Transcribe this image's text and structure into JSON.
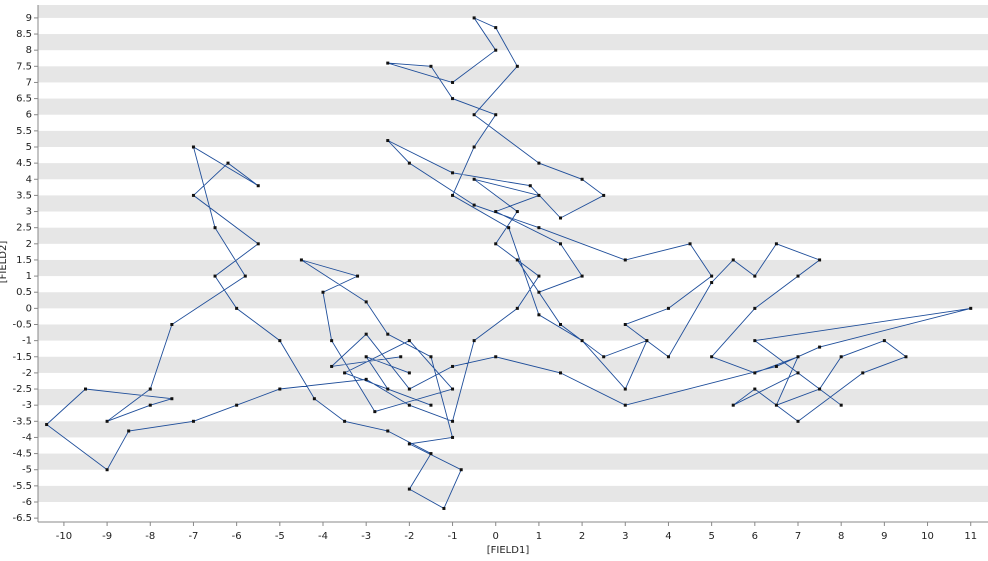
{
  "chart_data": {
    "type": "line",
    "x_label": "[FIELD1]",
    "y_label": "[FIELD2]",
    "line_color": "#1f4e9a",
    "marker_color": "#111111",
    "band_color": "#e6e6e6",
    "grid": "bands",
    "xlim": [
      -10.6,
      11.4
    ],
    "ylim": [
      -6.62,
      9.4
    ],
    "xticks": [
      -10,
      -9,
      -8,
      -7,
      -6,
      -5,
      -4,
      -3,
      -2,
      -1,
      0,
      1,
      2,
      3,
      4,
      5,
      6,
      7,
      8,
      9,
      10,
      11
    ],
    "yticks": [
      -6.5,
      -6,
      -5.5,
      -5,
      -4.5,
      -4,
      -3.5,
      -3,
      -2.5,
      -2,
      -1.5,
      -1,
      -0.5,
      0,
      0.5,
      1,
      1.5,
      2,
      2.5,
      3,
      3.5,
      4,
      4.5,
      5,
      5.5,
      6,
      6.5,
      7,
      7.5,
      8,
      8.5,
      9
    ],
    "x": [
      -2,
      -3,
      -2.5,
      -1.5,
      -3.5,
      -2,
      -1,
      -2.8,
      -3.8,
      -4,
      -3.2,
      -4.5,
      -3,
      -2.5,
      -1.5,
      -1,
      -2,
      -0.8,
      -1.2,
      -2,
      -1.5,
      -2.5,
      -3.5,
      -4.2,
      -5,
      -6,
      -6.5,
      -5.5,
      -7,
      -6.2,
      -5.5,
      -7,
      -6.5,
      -5.8,
      -7.5,
      -8,
      -9,
      -8,
      -7.5,
      -9.5,
      -10.4,
      -9,
      -8.5,
      -7,
      -6,
      -5,
      -3,
      -2,
      -1,
      -0.5,
      0.5,
      1,
      0,
      0.5,
      -0.5,
      1,
      0,
      1.5,
      2,
      1,
      0.5,
      1.5,
      2.5,
      3.5,
      3,
      2,
      1,
      0.3,
      -1,
      -0.5,
      0,
      -1,
      -1.5,
      -2.5,
      -1,
      0,
      -0.5,
      0,
      0.5,
      -0.5,
      1,
      2,
      2.5,
      1.5,
      0.8,
      -1,
      -2.5,
      -2,
      -0.5,
      1,
      3,
      4.5,
      5,
      4,
      3,
      4,
      5,
      5.5,
      6,
      6.5,
      7.5,
      7,
      6,
      5,
      6,
      7,
      6.5,
      7.5,
      8,
      9,
      9.5,
      8.5,
      7,
      6,
      5.5,
      7,
      8,
      6,
      11,
      7.5,
      6.5,
      3,
      1.5,
      0,
      -1,
      -2,
      -3,
      -3.8,
      -2.2
    ],
    "y": [
      -2,
      -1.5,
      -2.5,
      -3,
      -2,
      -1,
      -2.5,
      -3.2,
      -1,
      0.5,
      1,
      1.5,
      0.2,
      -0.8,
      -1.5,
      -4,
      -4.2,
      -5,
      -6.2,
      -5.6,
      -4.5,
      -3.8,
      -3.5,
      -2.8,
      -1,
      0,
      1,
      2,
      3.5,
      4.5,
      3.8,
      5,
      2.5,
      1,
      -0.5,
      -2.5,
      -3.5,
      -3,
      -2.8,
      -2.5,
      -3.6,
      -5,
      -3.8,
      -3.5,
      -3,
      -2.5,
      -2.2,
      -3,
      -3.5,
      -1,
      0,
      1,
      2,
      3,
      4,
      3.5,
      3,
      2,
      1,
      0.5,
      1.5,
      -0.5,
      -1.5,
      -1,
      -2.5,
      -1,
      -0.2,
      2.5,
      3.5,
      5,
      6,
      6.5,
      7.5,
      7.6,
      7,
      8,
      9,
      8.7,
      7.5,
      6,
      4.5,
      4,
      3.5,
      2.8,
      3.8,
      4.2,
      5.2,
      4.5,
      3.2,
      2.5,
      1.5,
      2,
      1,
      0,
      -0.5,
      -1.5,
      0.8,
      1.5,
      1,
      2,
      1.5,
      1,
      0,
      -1.5,
      -2,
      -1.5,
      -3,
      -2.5,
      -1.5,
      -1,
      -1.5,
      -2,
      -3.5,
      -2.5,
      -3,
      -2,
      -3,
      -1,
      0,
      -1.2,
      -1.8,
      -3,
      -2,
      -1.5,
      -1.8,
      -2.5,
      -0.8,
      -1.8,
      -1.5
    ]
  }
}
